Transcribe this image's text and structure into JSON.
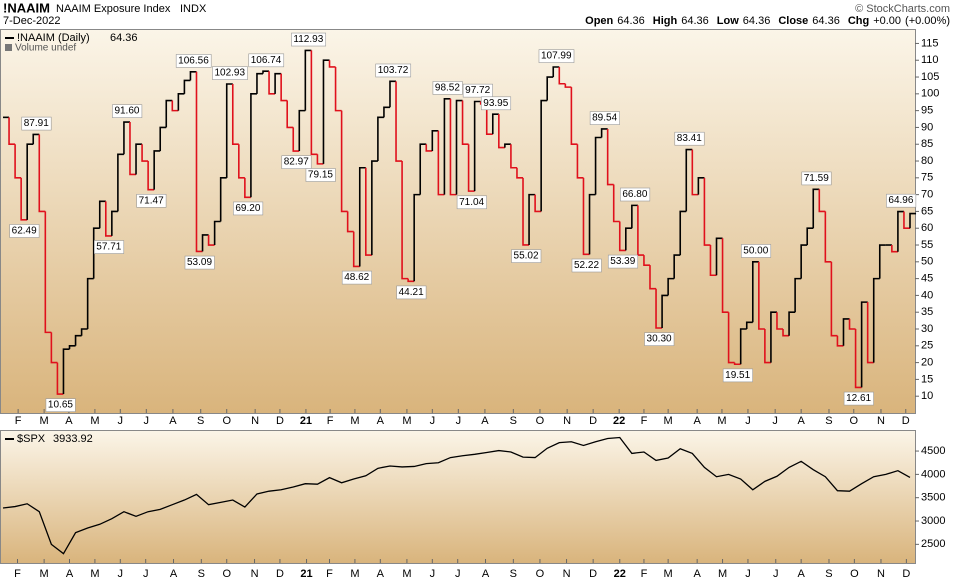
{
  "header": {
    "symbol": "!NAAIM",
    "name": "NAAIM Exposure Index",
    "exchange": "INDX",
    "date": "7-Dec-2022",
    "copyright": "© StockCharts.com",
    "quote": [
      {
        "label": "Open",
        "value": 64.36
      },
      {
        "label": "High",
        "value": 64.36
      },
      {
        "label": "Low",
        "value": 64.36
      },
      {
        "label": "Close",
        "value": 64.36
      },
      {
        "label": "Chg",
        "value": "+0.00"
      }
    ],
    "change_pct": "(+0.00%)"
  },
  "chart_data": [
    {
      "type": "step",
      "up_color": "#000000",
      "down_color": "#e0101c",
      "xlim": [
        0,
        150
      ],
      "ylim": [
        5,
        119
      ],
      "yticks": [
        10,
        15,
        20,
        25,
        30,
        35,
        40,
        45,
        50,
        55,
        60,
        65,
        70,
        75,
        80,
        85,
        90,
        95,
        100,
        105,
        110,
        115
      ],
      "xticks": [
        {
          "value": 2.5,
          "label": "F"
        },
        {
          "value": 6.8,
          "label": "M"
        },
        {
          "value": 10.9,
          "label": "A"
        },
        {
          "value": 15.2,
          "label": "M"
        },
        {
          "value": 19.4,
          "label": "J"
        },
        {
          "value": 23.7,
          "label": "J"
        },
        {
          "value": 28.1,
          "label": "A"
        },
        {
          "value": 32.7,
          "label": "S"
        },
        {
          "value": 37.0,
          "label": "O"
        },
        {
          "value": 41.7,
          "label": "N"
        },
        {
          "value": 45.8,
          "label": "D"
        },
        {
          "value": 50.1,
          "label": "21"
        },
        {
          "value": 54.1,
          "label": "F"
        },
        {
          "value": 58.2,
          "label": "M"
        },
        {
          "value": 62.4,
          "label": "A"
        },
        {
          "value": 66.8,
          "label": "M"
        },
        {
          "value": 71.0,
          "label": "J"
        },
        {
          "value": 75.3,
          "label": "J"
        },
        {
          "value": 79.7,
          "label": "A"
        },
        {
          "value": 84.4,
          "label": "S"
        },
        {
          "value": 88.8,
          "label": "O"
        },
        {
          "value": 93.3,
          "label": "N"
        },
        {
          "value": 97.6,
          "label": "D"
        },
        {
          "value": 101.9,
          "label": "22"
        },
        {
          "value": 106.0,
          "label": "F"
        },
        {
          "value": 110.0,
          "label": "M"
        },
        {
          "value": 114.8,
          "label": "A"
        },
        {
          "value": 118.9,
          "label": "M"
        },
        {
          "value": 123.2,
          "label": "J"
        },
        {
          "value": 127.7,
          "label": "J"
        },
        {
          "value": 132.0,
          "label": "A"
        },
        {
          "value": 136.6,
          "label": "S"
        },
        {
          "value": 140.7,
          "label": "O"
        },
        {
          "value": 145.2,
          "label": "N"
        },
        {
          "value": 149.3,
          "label": "D"
        }
      ],
      "series": [
        {
          "name": "!NAAIM (Daily)",
          "last_value": 64.36,
          "volume_label": "Volume undef",
          "values": [
            93,
            85,
            75,
            62.49,
            85,
            87.91,
            65,
            29,
            20,
            10.65,
            24,
            25,
            28,
            30,
            45,
            60,
            68,
            57.71,
            65,
            82,
            91.6,
            76,
            85,
            80,
            71.47,
            83,
            90,
            98,
            95,
            100,
            104,
            106.56,
            53.09,
            58,
            55,
            62,
            75,
            102.93,
            85,
            75,
            69.2,
            100,
            106,
            106.74,
            100,
            106,
            98,
            90,
            82.97,
            95,
            112.93,
            82,
            79.15,
            110,
            108,
            95,
            65,
            59,
            48.62,
            78,
            52,
            80,
            93,
            96,
            103.72,
            80,
            45,
            44.21,
            70,
            85,
            83,
            89,
            70,
            98.52,
            70,
            98,
            85,
            71.04,
            97.72,
            97,
            88,
            93.95,
            84,
            85,
            78,
            75,
            55.02,
            70,
            65,
            98,
            105,
            107.99,
            103,
            102,
            85,
            75,
            52.22,
            70,
            87,
            89.54,
            73,
            62,
            53.39,
            60,
            66.8,
            52,
            49,
            42,
            30.3,
            40,
            45,
            52,
            65,
            83.41,
            70,
            75,
            55,
            46,
            57,
            35,
            20,
            19.51,
            30,
            32,
            50,
            30,
            20,
            35,
            30,
            28,
            35,
            45,
            55,
            60,
            71.59,
            65,
            50,
            28,
            25,
            33,
            30,
            12.61,
            38,
            20,
            45,
            55,
            55,
            53,
            64.96,
            60,
            64.36
          ],
          "value_labels": [
            null,
            null,
            null,
            "62.49",
            null,
            "87.91",
            null,
            null,
            null,
            "10.65",
            null,
            null,
            null,
            null,
            null,
            null,
            null,
            "57.71",
            null,
            null,
            "91.60",
            null,
            null,
            null,
            "71.47",
            null,
            null,
            null,
            null,
            null,
            null,
            "106.56",
            "53.09",
            null,
            null,
            null,
            null,
            "102.93",
            null,
            null,
            "69.20",
            null,
            null,
            "106.74",
            null,
            null,
            null,
            null,
            "82.97",
            null,
            "112.93",
            null,
            "79.15",
            null,
            null,
            null,
            null,
            null,
            "48.62",
            null,
            null,
            null,
            null,
            null,
            "103.72",
            null,
            null,
            "44.21",
            null,
            null,
            null,
            null,
            null,
            "98.52",
            null,
            null,
            null,
            "71.04",
            "97.72",
            null,
            null,
            "93.95",
            null,
            null,
            null,
            null,
            "55.02",
            null,
            null,
            null,
            null,
            "107.99",
            null,
            null,
            null,
            null,
            "52.22",
            null,
            null,
            "89.54",
            null,
            null,
            "53.39",
            null,
            "66.80",
            null,
            null,
            null,
            "30.30",
            null,
            null,
            null,
            null,
            "83.41",
            null,
            null,
            null,
            null,
            null,
            null,
            null,
            "19.51",
            null,
            null,
            "50.00",
            null,
            null,
            null,
            null,
            null,
            null,
            null,
            null,
            null,
            "71.59",
            null,
            null,
            null,
            null,
            null,
            null,
            "12.61",
            null,
            null,
            null,
            null,
            null,
            null,
            "64.96",
            null,
            null
          ]
        }
      ]
    },
    {
      "type": "line",
      "color": "#000000",
      "xlim": [
        0,
        75
      ],
      "ylim": [
        2100,
        4930
      ],
      "yticks": [
        2500,
        3000,
        3500,
        4000,
        4500
      ],
      "xticks": [
        {
          "value": 1.2,
          "label": "F"
        },
        {
          "value": 3.4,
          "label": "M"
        },
        {
          "value": 5.5,
          "label": "A"
        },
        {
          "value": 7.6,
          "label": "M"
        },
        {
          "value": 9.7,
          "label": "J"
        },
        {
          "value": 11.8,
          "label": "J"
        },
        {
          "value": 14.1,
          "label": "A"
        },
        {
          "value": 16.4,
          "label": "S"
        },
        {
          "value": 18.5,
          "label": "O"
        },
        {
          "value": 20.8,
          "label": "N"
        },
        {
          "value": 22.9,
          "label": "D"
        },
        {
          "value": 25.1,
          "label": "21"
        },
        {
          "value": 27.0,
          "label": "F"
        },
        {
          "value": 29.1,
          "label": "M"
        },
        {
          "value": 31.2,
          "label": "A"
        },
        {
          "value": 33.4,
          "label": "M"
        },
        {
          "value": 35.5,
          "label": "J"
        },
        {
          "value": 37.6,
          "label": "J"
        },
        {
          "value": 39.9,
          "label": "A"
        },
        {
          "value": 42.2,
          "label": "S"
        },
        {
          "value": 44.4,
          "label": "O"
        },
        {
          "value": 46.6,
          "label": "N"
        },
        {
          "value": 48.8,
          "label": "D"
        },
        {
          "value": 51.0,
          "label": "22"
        },
        {
          "value": 53.0,
          "label": "F"
        },
        {
          "value": 55.0,
          "label": "M"
        },
        {
          "value": 57.4,
          "label": "A"
        },
        {
          "value": 59.5,
          "label": "M"
        },
        {
          "value": 61.6,
          "label": "J"
        },
        {
          "value": 63.9,
          "label": "J"
        },
        {
          "value": 66.0,
          "label": "A"
        },
        {
          "value": 68.3,
          "label": "S"
        },
        {
          "value": 70.4,
          "label": "O"
        },
        {
          "value": 72.6,
          "label": "N"
        },
        {
          "value": 74.7,
          "label": "D"
        }
      ],
      "series": [
        {
          "name": "$SPX",
          "last_value": 3933.92,
          "values": [
            3280,
            3310,
            3370,
            3200,
            2500,
            2300,
            2750,
            2850,
            2930,
            3050,
            3200,
            3100,
            3200,
            3250,
            3350,
            3450,
            3570,
            3350,
            3400,
            3450,
            3300,
            3580,
            3640,
            3670,
            3730,
            3800,
            3790,
            3930,
            3820,
            3900,
            3970,
            4130,
            4180,
            4160,
            4170,
            4230,
            4250,
            4360,
            4400,
            4430,
            4470,
            4510,
            4480,
            4370,
            4360,
            4560,
            4680,
            4700,
            4620,
            4700,
            4770,
            4790,
            4450,
            4480,
            4300,
            4350,
            4550,
            4450,
            4150,
            3950,
            4000,
            3900,
            3670,
            3850,
            3960,
            4150,
            4280,
            4100,
            3950,
            3650,
            3640,
            3800,
            3950,
            4000,
            4080,
            3933.92
          ]
        }
      ]
    }
  ]
}
